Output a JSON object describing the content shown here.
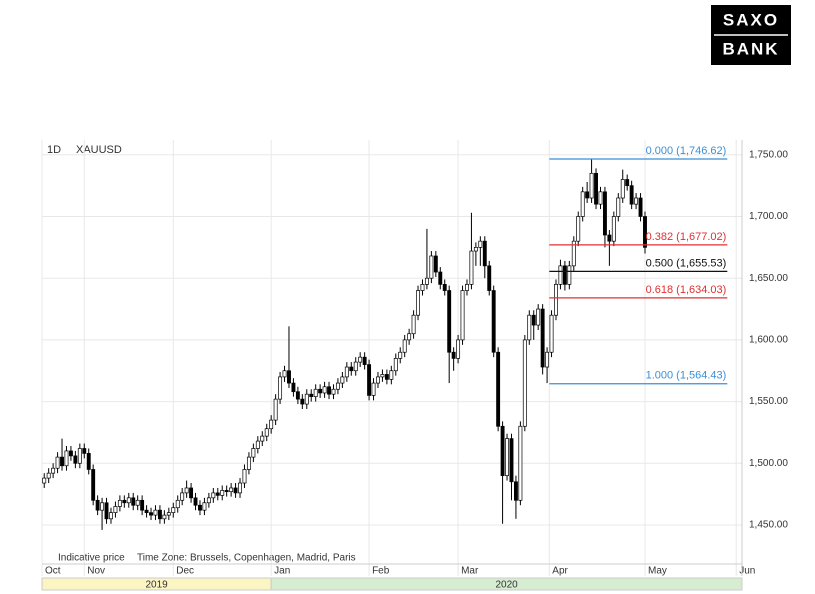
{
  "logo": {
    "top": "SAXO",
    "bottom": "BANK"
  },
  "chart_data": {
    "type": "candlestick",
    "interval": "1D",
    "symbol": "XAUUSD",
    "footnote": "Indicative price",
    "timezone": "Time Zone: Brussels, Copenhagen, Madrid, Paris",
    "xlim": [
      -0.5,
      156.8
    ],
    "xticks": [
      {
        "value": -0.5,
        "label": "Oct"
      },
      {
        "value": 9,
        "label": "Nov"
      },
      {
        "value": 29,
        "label": "Dec"
      },
      {
        "value": 51,
        "label": "Jan"
      },
      {
        "value": 73,
        "label": "Feb"
      },
      {
        "value": 93,
        "label": "Mar"
      },
      {
        "value": 113.5,
        "label": "Apr"
      },
      {
        "value": 135,
        "label": "May"
      },
      {
        "value": 155.5,
        "label": "Jun"
      }
    ],
    "years": [
      {
        "label": "2019",
        "start": -0.5,
        "end": 51
      },
      {
        "label": "2020",
        "start": 51,
        "end": 156.8
      }
    ],
    "ylim": [
      1420,
      1762
    ],
    "yticks": [
      {
        "value": 1450,
        "label": "1,450.00"
      },
      {
        "value": 1500,
        "label": "1,500.00"
      },
      {
        "value": 1550,
        "label": "1,550.00"
      },
      {
        "value": 1600,
        "label": "1,600.00"
      },
      {
        "value": 1650,
        "label": "1,650.00"
      },
      {
        "value": 1700,
        "label": "1,700.00"
      },
      {
        "value": 1750,
        "label": "1,750.00"
      }
    ],
    "grid": true,
    "up_color": "#ffffff",
    "down_color": "#000000",
    "open": [
      1484,
      1488,
      1492,
      1496,
      1505,
      1498,
      1510,
      1506,
      1500,
      1512,
      1508,
      1495,
      1470,
      1462,
      1468,
      1455,
      1460,
      1465,
      1470,
      1468,
      1472,
      1466,
      1470,
      1462,
      1460,
      1458,
      1462,
      1455,
      1458,
      1460,
      1464,
      1470,
      1476,
      1480,
      1472,
      1466,
      1462,
      1468,
      1472,
      1476,
      1474,
      1478,
      1477,
      1480,
      1476,
      1484,
      1495,
      1505,
      1512,
      1518,
      1522,
      1528,
      1535,
      1552,
      1570,
      1575,
      1565,
      1558,
      1552,
      1548,
      1556,
      1554,
      1560,
      1557,
      1562,
      1556,
      1560,
      1565,
      1570,
      1578,
      1575,
      1582,
      1586,
      1580,
      1555,
      1565,
      1570,
      1572,
      1568,
      1575,
      1585,
      1590,
      1600,
      1605,
      1620,
      1640,
      1645,
      1650,
      1668,
      1655,
      1645,
      1640,
      1590,
      1585,
      1600,
      1640,
      1645,
      1672,
      1675,
      1680,
      1660,
      1640,
      1590,
      1530,
      1490,
      1520,
      1485,
      1470,
      1530,
      1600,
      1620,
      1612,
      1625,
      1578,
      1590,
      1620,
      1645,
      1660,
      1645,
      1660,
      1680,
      1700,
      1720,
      1715,
      1735,
      1710,
      1720,
      1685,
      1680,
      1700,
      1715,
      1730,
      1725,
      1710,
      1715,
      1700
    ],
    "high": [
      1492,
      1496,
      1500,
      1509,
      1520,
      1514,
      1514,
      1510,
      1516,
      1516,
      1512,
      1499,
      1474,
      1472,
      1472,
      1464,
      1469,
      1474,
      1474,
      1476,
      1476,
      1474,
      1474,
      1466,
      1464,
      1466,
      1466,
      1462,
      1464,
      1468,
      1474,
      1480,
      1486,
      1484,
      1476,
      1470,
      1472,
      1476,
      1480,
      1480,
      1482,
      1482,
      1484,
      1484,
      1488,
      1499,
      1509,
      1516,
      1522,
      1526,
      1532,
      1539,
      1556,
      1574,
      1579,
      1611,
      1569,
      1562,
      1556,
      1560,
      1560,
      1564,
      1564,
      1566,
      1566,
      1564,
      1569,
      1574,
      1582,
      1582,
      1586,
      1590,
      1590,
      1584,
      1569,
      1574,
      1576,
      1576,
      1579,
      1589,
      1594,
      1604,
      1609,
      1624,
      1644,
      1649,
      1690,
      1672,
      1672,
      1659,
      1649,
      1644,
      1594,
      1604,
      1644,
      1649,
      1703,
      1679,
      1684,
      1684,
      1664,
      1644,
      1594,
      1534,
      1524,
      1524,
      1490,
      1534,
      1604,
      1624,
      1624,
      1629,
      1629,
      1594,
      1624,
      1649,
      1665,
      1664,
      1664,
      1684,
      1704,
      1724,
      1728,
      1747,
      1739,
      1724,
      1724,
      1689,
      1704,
      1719,
      1738,
      1734,
      1729,
      1719,
      1719,
      1704
    ],
    "low": [
      1480,
      1484,
      1488,
      1492,
      1494,
      1494,
      1502,
      1496,
      1496,
      1504,
      1491,
      1466,
      1458,
      1446,
      1451,
      1451,
      1456,
      1461,
      1464,
      1464,
      1462,
      1462,
      1458,
      1456,
      1454,
      1454,
      1451,
      1451,
      1454,
      1456,
      1460,
      1466,
      1472,
      1468,
      1462,
      1458,
      1458,
      1464,
      1468,
      1470,
      1470,
      1473,
      1473,
      1472,
      1472,
      1480,
      1491,
      1501,
      1508,
      1514,
      1518,
      1524,
      1531,
      1548,
      1566,
      1561,
      1554,
      1548,
      1544,
      1544,
      1550,
      1550,
      1553,
      1553,
      1552,
      1552,
      1556,
      1561,
      1566,
      1571,
      1571,
      1578,
      1576,
      1551,
      1551,
      1561,
      1566,
      1564,
      1564,
      1571,
      1581,
      1586,
      1596,
      1601,
      1616,
      1636,
      1641,
      1646,
      1651,
      1641,
      1636,
      1565,
      1575,
      1581,
      1596,
      1636,
      1641,
      1660,
      1660,
      1650,
      1636,
      1586,
      1526,
      1451,
      1486,
      1470,
      1455,
      1466,
      1526,
      1596,
      1600,
      1608,
      1572,
      1565,
      1586,
      1616,
      1641,
      1640,
      1641,
      1656,
      1676,
      1696,
      1711,
      1711,
      1706,
      1706,
      1675,
      1660,
      1676,
      1696,
      1711,
      1721,
      1706,
      1706,
      1696,
      1670
    ],
    "close": [
      1488,
      1492,
      1496,
      1505,
      1498,
      1510,
      1506,
      1500,
      1512,
      1508,
      1495,
      1470,
      1462,
      1468,
      1455,
      1460,
      1465,
      1470,
      1468,
      1472,
      1466,
      1470,
      1462,
      1460,
      1458,
      1462,
      1455,
      1458,
      1460,
      1464,
      1470,
      1476,
      1480,
      1472,
      1466,
      1462,
      1468,
      1472,
      1476,
      1474,
      1478,
      1477,
      1480,
      1476,
      1484,
      1495,
      1505,
      1512,
      1518,
      1522,
      1528,
      1535,
      1552,
      1570,
      1575,
      1565,
      1558,
      1552,
      1548,
      1556,
      1554,
      1560,
      1557,
      1562,
      1556,
      1560,
      1565,
      1570,
      1578,
      1575,
      1582,
      1586,
      1580,
      1555,
      1565,
      1570,
      1572,
      1568,
      1575,
      1585,
      1590,
      1600,
      1605,
      1620,
      1640,
      1645,
      1650,
      1668,
      1655,
      1645,
      1640,
      1590,
      1585,
      1600,
      1640,
      1645,
      1672,
      1675,
      1680,
      1660,
      1640,
      1590,
      1530,
      1490,
      1520,
      1485,
      1470,
      1530,
      1600,
      1620,
      1612,
      1625,
      1578,
      1590,
      1620,
      1645,
      1660,
      1645,
      1660,
      1680,
      1700,
      1720,
      1715,
      1735,
      1710,
      1720,
      1685,
      1680,
      1700,
      1715,
      1730,
      1725,
      1710,
      1715,
      1700,
      1675
    ],
    "fib_span": [
      113.5,
      153.5
    ],
    "fib_levels": [
      {
        "label": "0.000 (1,746.62)",
        "value": 1746.62,
        "color": "#3a8fd8"
      },
      {
        "label": "0.382 (1,677.02)",
        "value": 1677.02,
        "color": "#e03030"
      },
      {
        "label": "0.500 (1,655.53)",
        "value": 1655.53,
        "color": "#111111"
      },
      {
        "label": "0.618 (1,634.03)",
        "value": 1634.03,
        "color": "#e03030"
      },
      {
        "label": "1.000 (1,564.43)",
        "value": 1564.43,
        "color": "#3a8fd8"
      }
    ]
  }
}
